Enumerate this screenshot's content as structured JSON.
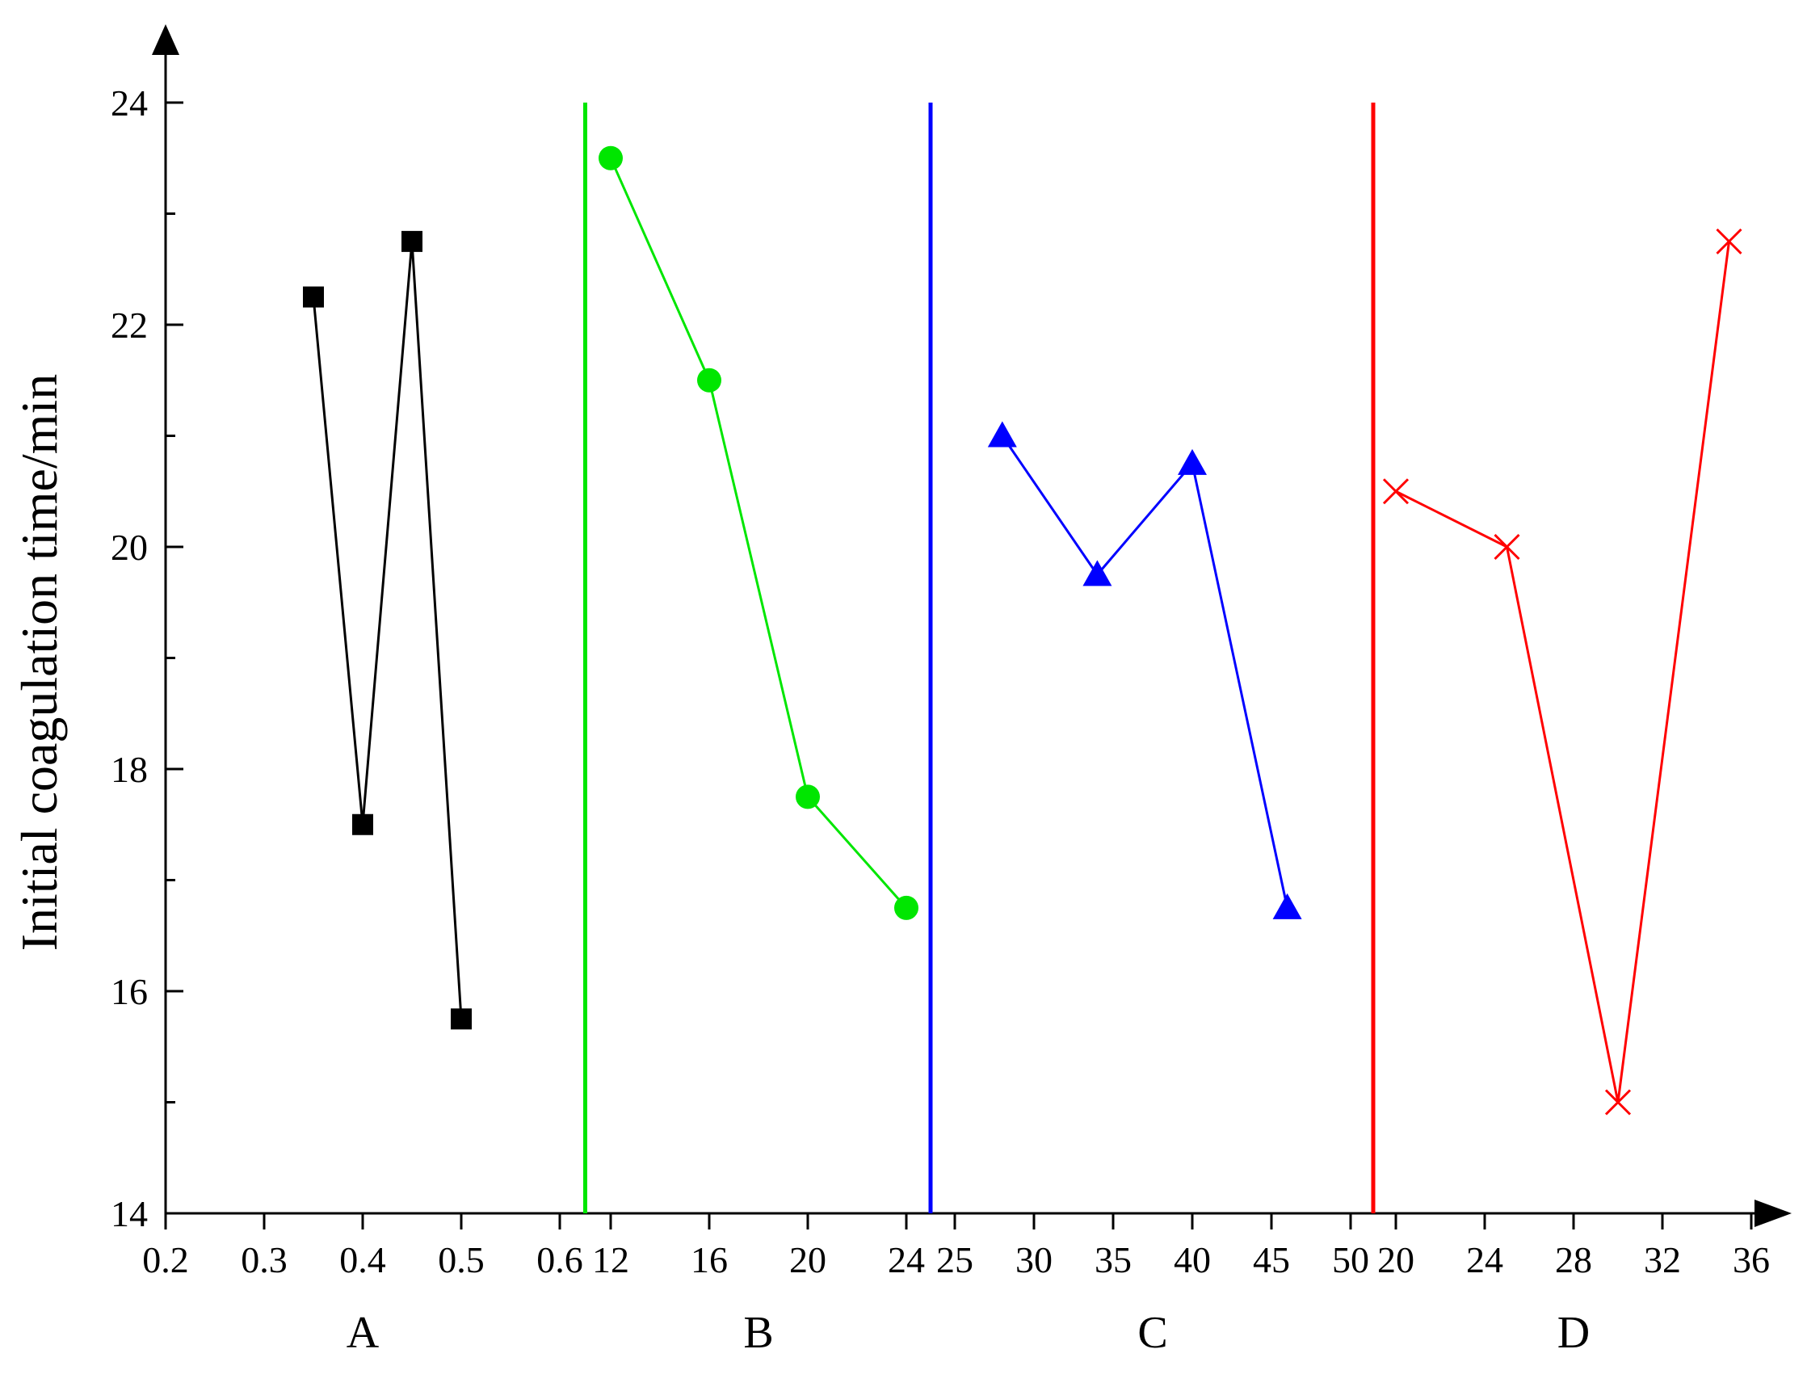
{
  "chart_data": {
    "type": "line",
    "ylabel": "Initial coagulation time/min",
    "ylim": [
      14,
      24
    ],
    "yticks": [
      "14",
      "16",
      "18",
      "20",
      "22",
      "24"
    ],
    "grid": false,
    "legend": "none",
    "panels": [
      {
        "group": "A",
        "color": "#000000",
        "marker": "square",
        "xlim": [
          0.2,
          0.6
        ],
        "xticks": [
          "0.2",
          "0.3",
          "0.4",
          "0.5",
          "0.6"
        ],
        "x": [
          0.35,
          0.4,
          0.45,
          0.5
        ],
        "values": [
          22.25,
          17.5,
          22.75,
          15.75
        ]
      },
      {
        "group": "B",
        "color": "#00e600",
        "marker": "circle",
        "xlim": [
          12,
          24
        ],
        "xticks": [
          "12",
          "16",
          "20",
          "24"
        ],
        "x": [
          12,
          16,
          20,
          24
        ],
        "values": [
          23.5,
          21.5,
          17.75,
          16.75
        ]
      },
      {
        "group": "C",
        "color": "#0000ff",
        "marker": "triangle",
        "xlim": [
          25,
          50
        ],
        "xticks": [
          "25",
          "30",
          "35",
          "40",
          "45",
          "50"
        ],
        "x": [
          28,
          34,
          40,
          46
        ],
        "values": [
          21.0,
          19.75,
          20.75,
          16.75
        ]
      },
      {
        "group": "D",
        "color": "#ff0000",
        "marker": "cross",
        "xlim": [
          20,
          36
        ],
        "xticks": [
          "20",
          "24",
          "28",
          "32",
          "36"
        ],
        "x": [
          20,
          25,
          30,
          35
        ],
        "values": [
          20.5,
          20.0,
          15.0,
          22.75
        ]
      }
    ]
  }
}
